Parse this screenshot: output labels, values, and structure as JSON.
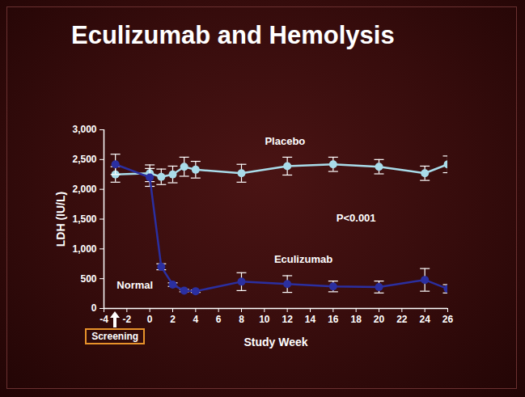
{
  "chart_data": {
    "type": "line",
    "title": "Eculizumab and Hemolysis",
    "x_label": "Study Week",
    "y_label": "LDH (IU/L)",
    "x": [
      -3,
      0,
      1,
      2,
      3,
      4,
      8,
      12,
      16,
      20,
      24,
      26
    ],
    "series": [
      {
        "name": "Placebo",
        "color": "#a9dcea",
        "marker": "circle",
        "values": [
          2250,
          2270,
          2210,
          2250,
          2380,
          2330,
          2270,
          2390,
          2420,
          2380,
          2270,
          2420
        ],
        "errors": [
          130,
          140,
          130,
          140,
          160,
          140,
          150,
          150,
          120,
          120,
          120,
          140
        ],
        "label_at": {
          "x": 11.8,
          "y": 2800
        }
      },
      {
        "name": "Eculizumab",
        "color": "#2b2fa0",
        "marker": "circle",
        "values": [
          2420,
          2200,
          700,
          400,
          300,
          290,
          450,
          410,
          370,
          360,
          480,
          330
        ],
        "errors": [
          170,
          150,
          50,
          30,
          20,
          20,
          150,
          140,
          90,
          100,
          190,
          70
        ],
        "label_at": {
          "x": 13.4,
          "y": 830
        }
      }
    ],
    "annotations": [
      {
        "text": "Normal",
        "x": -1.3,
        "y": 390
      },
      {
        "text": "P<0.001",
        "x": 18,
        "y": 1520
      },
      {
        "text": "Screening",
        "x": -3
      }
    ],
    "xlim": [
      -4,
      26
    ],
    "xticks": [
      -4,
      -2,
      0,
      2,
      4,
      6,
      8,
      10,
      12,
      14,
      16,
      18,
      20,
      22,
      24,
      26
    ],
    "ylim": [
      0,
      3000
    ],
    "yticks": [
      0,
      500,
      {
        "value": 1000,
        "label": "1,000"
      },
      {
        "value": 1500,
        "label": "1,500"
      },
      {
        "value": 2000,
        "label": "2,000"
      },
      {
        "value": 2500,
        "label": "2,500"
      },
      {
        "value": 3000,
        "label": "3,000"
      }
    ]
  }
}
